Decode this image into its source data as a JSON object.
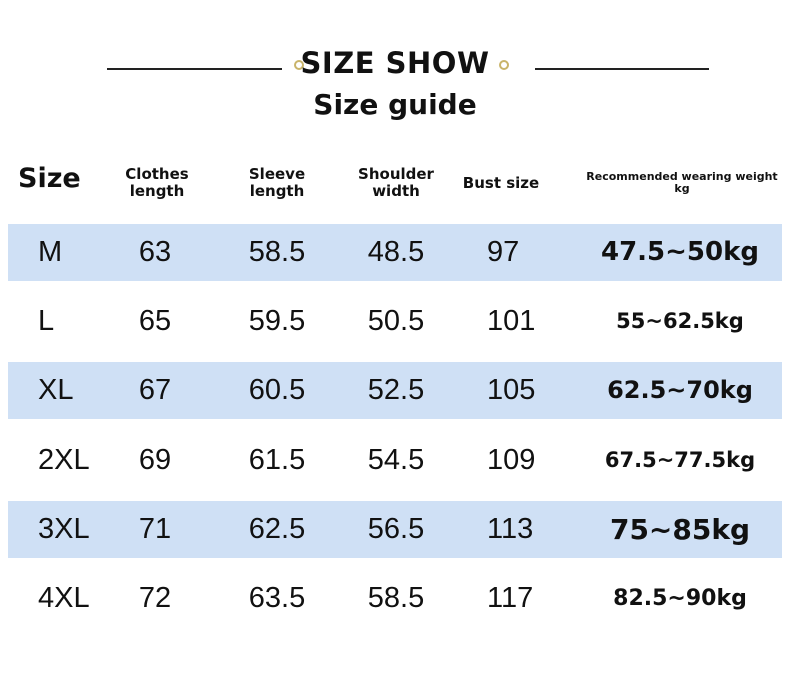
{
  "header": {
    "title": "SIZE SHOW",
    "subtitle": "Size guide"
  },
  "table": {
    "columns": [
      "Size",
      "Clothes length",
      "Sleeve length",
      "Shoulder width",
      "Bust size",
      "Recommended wearing weight kg"
    ],
    "rows": [
      [
        "M",
        "63",
        "58.5",
        "48.5",
        "97",
        "47.5~50kg"
      ],
      [
        "L",
        "65",
        "59.5",
        "50.5",
        "101",
        "55~62.5kg"
      ],
      [
        "XL",
        "67",
        "60.5",
        "52.5",
        "105",
        "62.5~70kg"
      ],
      [
        "2XL",
        "69",
        "61.5",
        "54.5",
        "109",
        "67.5~77.5kg"
      ],
      [
        "3XL",
        "71",
        "62.5",
        "56.5",
        "113",
        "75~85kg"
      ],
      [
        "4XL",
        "72",
        "63.5",
        "58.5",
        "117",
        "82.5~90kg"
      ]
    ]
  }
}
